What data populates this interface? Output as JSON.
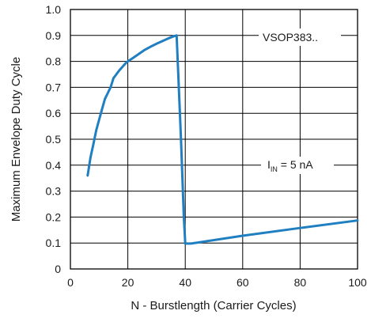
{
  "chart_data": {
    "type": "line",
    "title": "",
    "xlabel": "N - Burstlength (Carrier Cycles)",
    "ylabel": "Maximum Envelope Duty Cycle",
    "xlim": [
      0,
      100
    ],
    "ylim": [
      0,
      1.0
    ],
    "x_ticks": [
      0,
      20,
      40,
      60,
      80,
      100
    ],
    "y_ticks": [
      0,
      0.1,
      0.2,
      0.3,
      0.4,
      0.5,
      0.6,
      0.7,
      0.8,
      0.9,
      1.0
    ],
    "x_tick_labels": [
      "0",
      "20",
      "40",
      "60",
      "80",
      "100"
    ],
    "y_tick_labels": [
      "0",
      "0.1",
      "0.2",
      "0.3",
      "0.4",
      "0.5",
      "0.6",
      "0.7",
      "0.8",
      "0.9",
      "1.0"
    ],
    "grid": true,
    "series": [
      {
        "color": "#1f7fc1",
        "points": [
          [
            6,
            0.36
          ],
          [
            7,
            0.43
          ],
          [
            8,
            0.48
          ],
          [
            9,
            0.535
          ],
          [
            10,
            0.575
          ],
          [
            11,
            0.615
          ],
          [
            12,
            0.655
          ],
          [
            14,
            0.7
          ],
          [
            15,
            0.735
          ],
          [
            17,
            0.765
          ],
          [
            19,
            0.79
          ],
          [
            20,
            0.8
          ],
          [
            22,
            0.815
          ],
          [
            24,
            0.83
          ],
          [
            26,
            0.845
          ],
          [
            28,
            0.857
          ],
          [
            30,
            0.868
          ],
          [
            32,
            0.878
          ],
          [
            34,
            0.888
          ],
          [
            36,
            0.897
          ],
          [
            37,
            0.9
          ],
          [
            38.5,
            0.5
          ],
          [
            39.5,
            0.2
          ],
          [
            40,
            0.098
          ],
          [
            42,
            0.098
          ],
          [
            60,
            0.128
          ],
          [
            80,
            0.158
          ],
          [
            100,
            0.187
          ]
        ]
      }
    ],
    "annotations": {
      "device_label": "VSOP383..",
      "current_symbol": "I",
      "current_subscript": "IN",
      "current_value": " = 5 nA"
    }
  }
}
